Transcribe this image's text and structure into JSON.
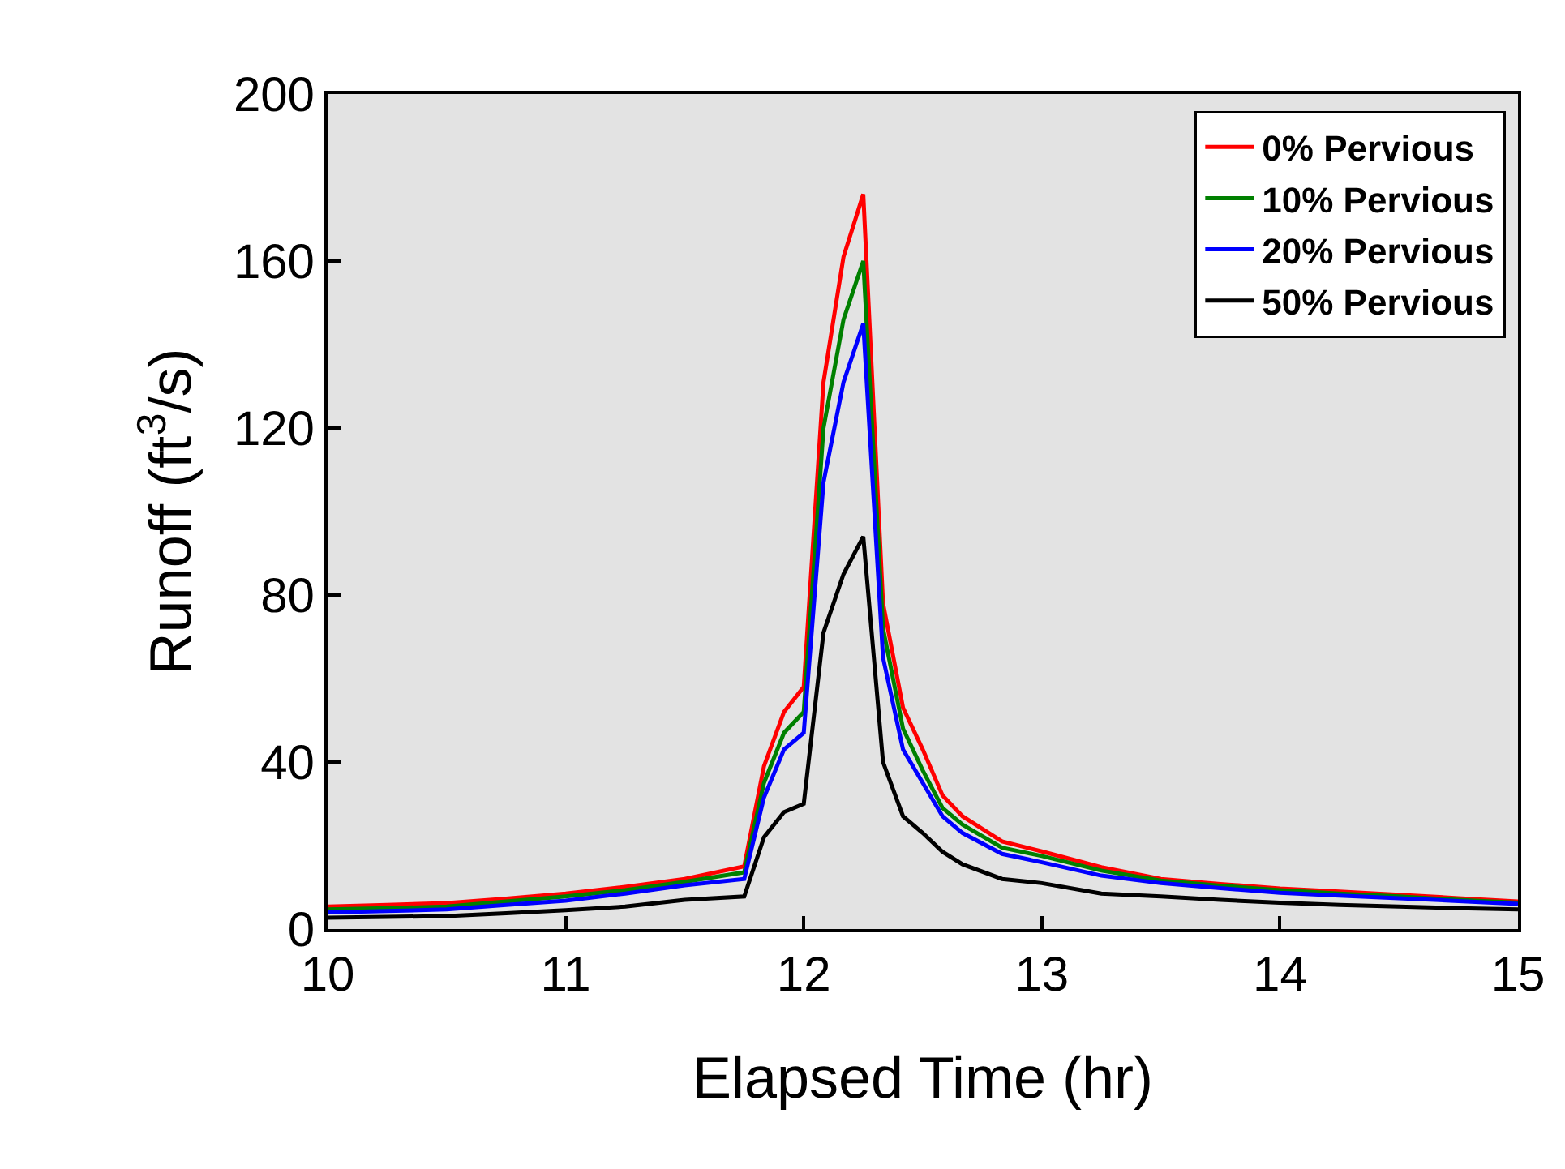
{
  "chart_data": {
    "type": "line",
    "xlabel": "Elapsed Time (hr)",
    "ylabel": "Runoff (ft$^{3}$/s)",
    "x": [
      10,
      10.25,
      10.5,
      10.75,
      11,
      11.25,
      11.5,
      11.75,
      11.833,
      11.917,
      12,
      12.083,
      12.167,
      12.25,
      12.333,
      12.417,
      12.5,
      12.583,
      12.667,
      12.833,
      13,
      13.25,
      13.5,
      13.75,
      14,
      14.25,
      14.5,
      14.75,
      15
    ],
    "series": [
      {
        "name": "0% Pervious",
        "color": "#ff0000",
        "values": [
          5.4,
          5.8,
          6.2,
          7.3,
          8.5,
          10.1,
          12,
          15,
          39,
          52,
          58,
          131,
          161,
          176,
          78,
          53,
          43,
          32,
          27,
          21,
          18.6,
          14.8,
          12,
          10.8,
          9.7,
          9,
          8.2,
          7.4,
          6.6
        ]
      },
      {
        "name": "10% Pervious",
        "color": "#008000",
        "values": [
          4.7,
          5,
          5.4,
          6.6,
          7.8,
          9.3,
          11.3,
          13.6,
          35,
          47,
          52,
          120,
          146,
          160,
          72,
          48,
          38,
          29,
          25,
          19.5,
          17.5,
          14,
          11.6,
          10.4,
          9.3,
          8.5,
          7.8,
          7,
          6.3
        ]
      },
      {
        "name": "20% Pervious",
        "color": "#0000ff",
        "values": [
          4,
          4.3,
          4.7,
          5.8,
          6.8,
          8.5,
          10.5,
          12,
          31.5,
          43,
          47,
          107,
          131,
          145,
          65,
          43,
          35,
          27,
          23,
          18,
          16,
          12.8,
          11,
          9.8,
          8.7,
          8,
          7.4,
          6.7,
          6
        ]
      },
      {
        "name": "50% Pervious",
        "color": "#000000",
        "values": [
          2.7,
          2.9,
          3.1,
          3.8,
          4.5,
          5.4,
          7,
          7.8,
          22,
          28,
          30,
          71,
          85,
          94,
          40,
          27,
          23,
          18.5,
          15.5,
          12,
          11,
          8.5,
          7.8,
          7,
          6.3,
          5.8,
          5.4,
          5,
          4.7
        ]
      }
    ],
    "xlim": [
      10,
      15
    ],
    "xticks": [
      10,
      11,
      12,
      13,
      14,
      15
    ],
    "ylim": [
      0,
      200
    ],
    "yticks": [
      0,
      40,
      80,
      120,
      160,
      200
    ],
    "grid": false,
    "legend": "top right",
    "marker": "none",
    "line_style": "solid"
  }
}
